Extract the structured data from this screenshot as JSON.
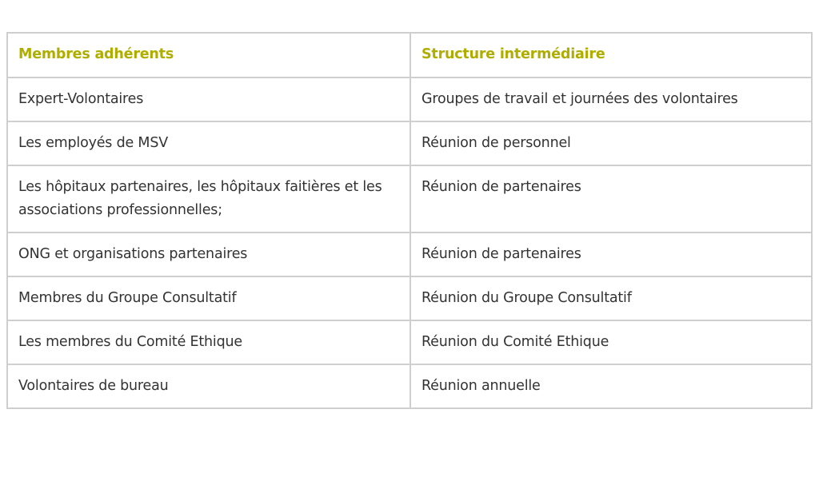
{
  "colors": {
    "header_text": "#afad00",
    "body_text": "#333333",
    "border": "#cfcfcf"
  },
  "table": {
    "headers": [
      "Membres adhérents",
      "Structure intermédiaire"
    ],
    "rows": [
      [
        "Expert-Volontaires",
        "Groupes de travail et journées des volontaires"
      ],
      [
        "Les employés de MSV",
        "Réunion de personnel"
      ],
      [
        "Les hôpitaux partenaires, les hôpitaux faitières et les associations professionnelles;",
        "Réunion de partenaires"
      ],
      [
        "ONG et organisations partenaires",
        "Réunion de partenaires"
      ],
      [
        "Membres du Groupe Consultatif",
        "Réunion du Groupe Consultatif"
      ],
      [
        "Les membres du Comité Ethique",
        "Réunion du Comité Ethique"
      ],
      [
        "Volontaires de bureau",
        "Réunion annuelle"
      ]
    ]
  }
}
